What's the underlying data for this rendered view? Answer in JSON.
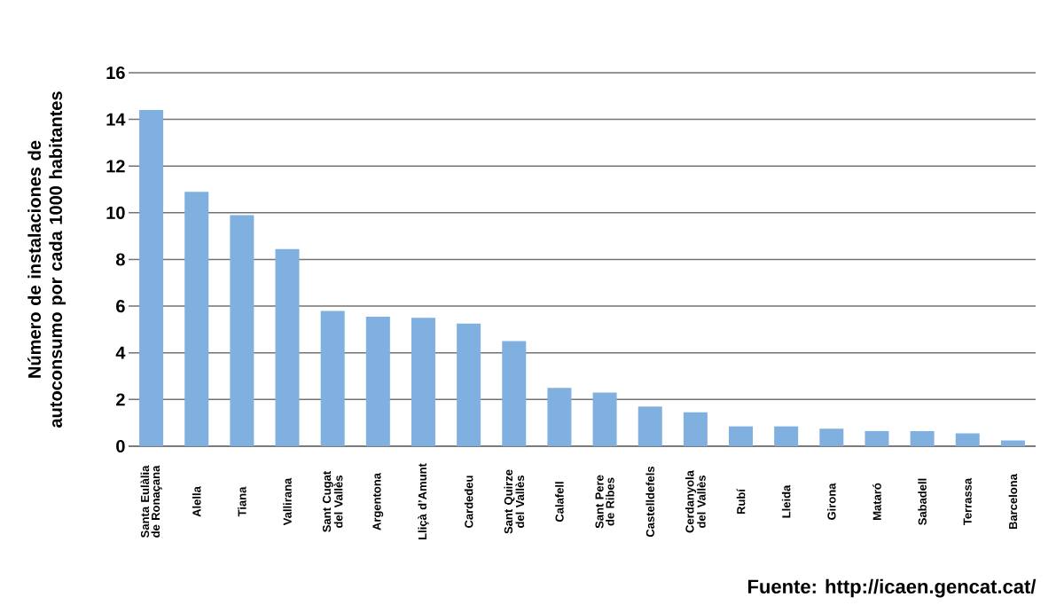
{
  "chart_data": {
    "type": "bar",
    "ylabel": "Número de instalaciones de autoconsumo por cada 1000 habitantes",
    "categories": [
      "Santa Eulàlia de Ronaçana",
      "Alella",
      "Tiana",
      "Vallirana",
      "Sant Cugat del Vallès",
      "Argentona",
      "Lliçà d’Amunt",
      "Cardedeu",
      "Sant Quirze del Vallès",
      "Calafell",
      "Sant Pere de Ribes",
      "Castelldefels",
      "Cerdanyola del Vallès",
      "Rubí",
      "Lleida",
      "Girona",
      "Mataró",
      "Sabadell",
      "Terrassa",
      "Barcelona"
    ],
    "values": [
      14.4,
      10.9,
      9.9,
      8.45,
      5.8,
      5.55,
      5.5,
      5.25,
      4.5,
      2.5,
      2.3,
      1.7,
      1.45,
      0.85,
      0.85,
      0.75,
      0.65,
      0.65,
      0.55,
      0.25
    ],
    "color": "#7fb0e0",
    "ylim": [
      0,
      16
    ],
    "yticks": [
      0,
      2,
      4,
      6,
      8,
      10,
      12,
      14,
      16
    ],
    "grid": "y",
    "annotations": [
      "Fuente: http://icaen.gencat.cat/"
    ]
  }
}
